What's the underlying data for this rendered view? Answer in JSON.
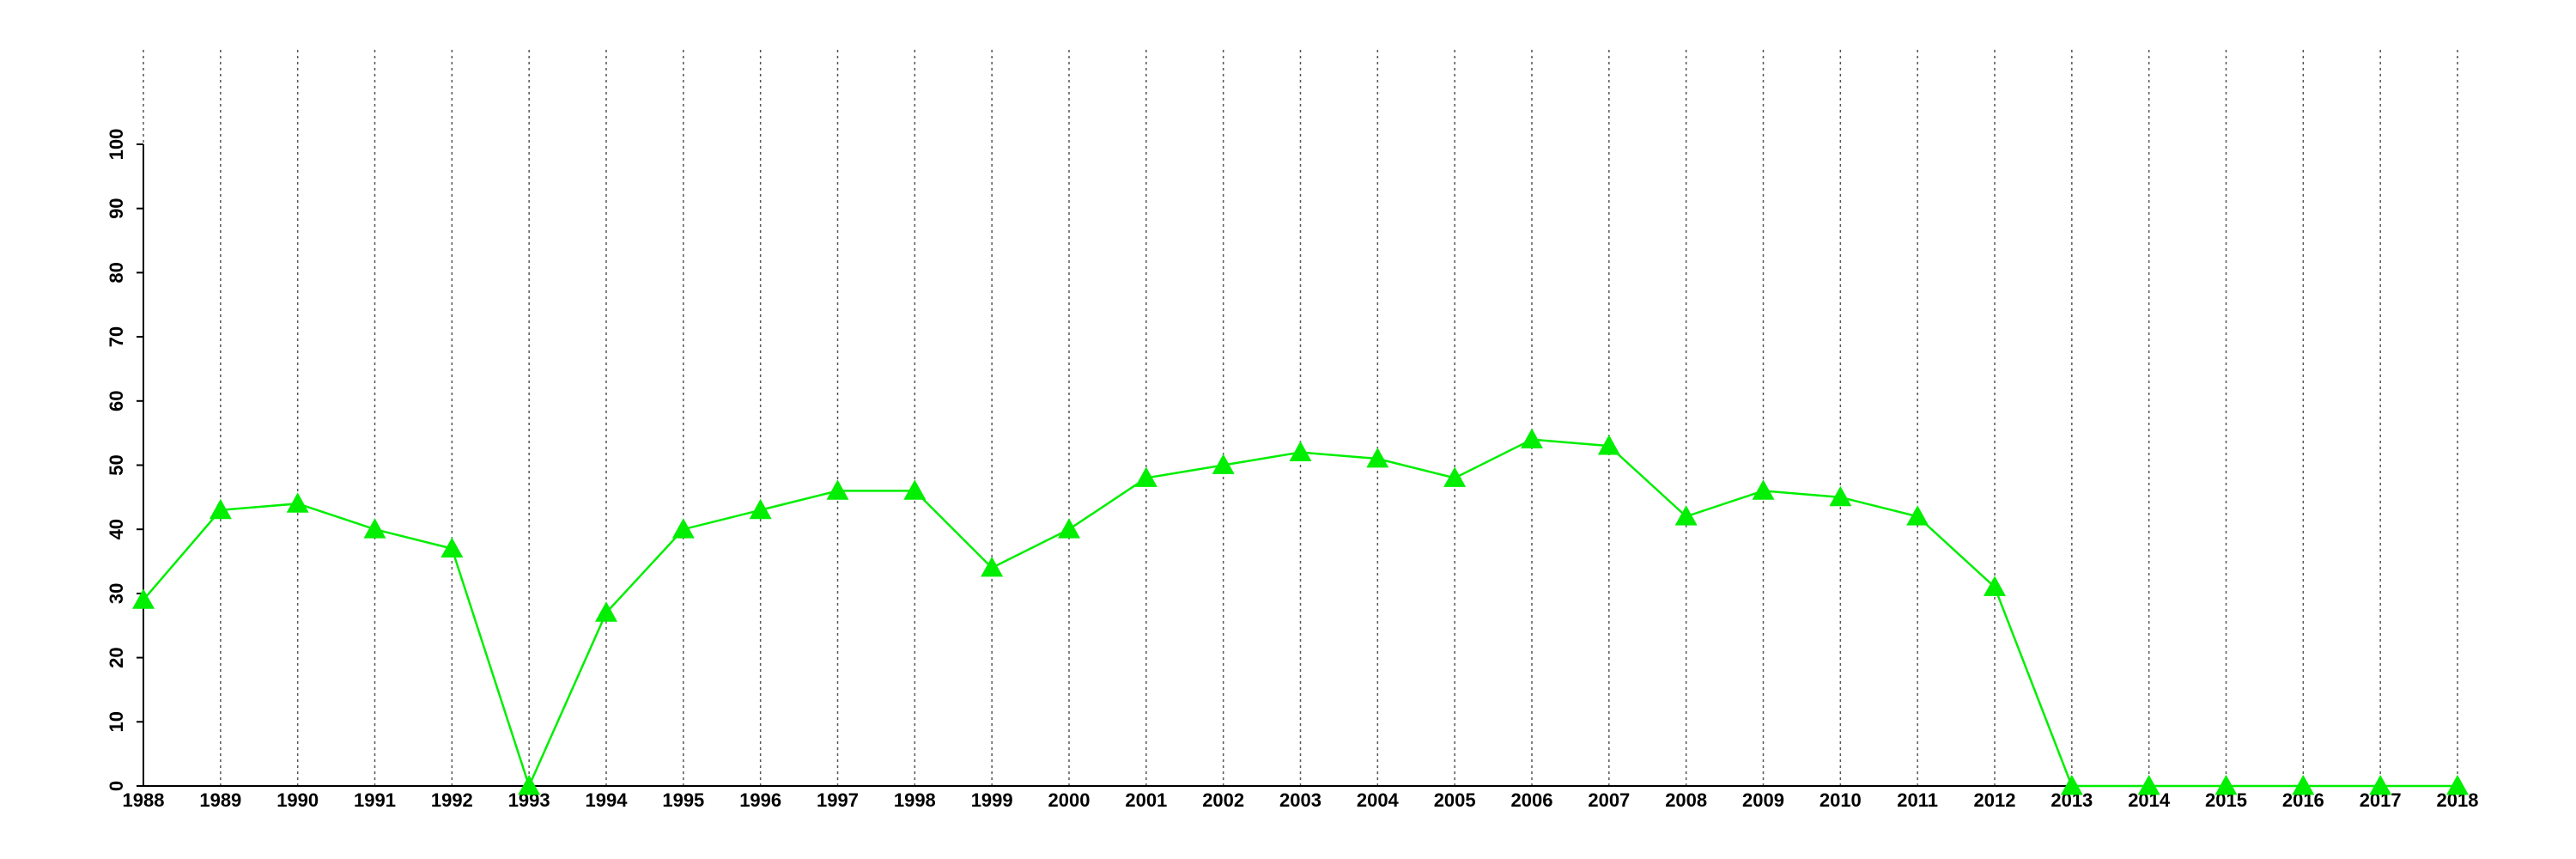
{
  "chart_data": {
    "type": "line",
    "x": [
      1988,
      1989,
      1990,
      1991,
      1992,
      1993,
      1994,
      1995,
      1996,
      1997,
      1998,
      1999,
      2000,
      2001,
      2002,
      2003,
      2004,
      2005,
      2006,
      2007,
      2008,
      2009,
      2010,
      2011,
      2012,
      2013,
      2014,
      2015,
      2016,
      2017,
      2018
    ],
    "values": [
      29,
      43,
      44,
      40,
      37,
      0,
      27,
      40,
      43,
      46,
      46,
      34,
      40,
      48,
      50,
      52,
      51,
      48,
      54,
      53,
      42,
      46,
      45,
      42,
      31,
      0,
      0,
      0,
      0,
      0,
      0
    ],
    "color": "#00ee00",
    "xlim": [
      1988,
      2018
    ],
    "xticks": [
      1988,
      1989,
      1990,
      1991,
      1992,
      1993,
      1994,
      1995,
      1996,
      1997,
      1998,
      1999,
      2000,
      2001,
      2002,
      2003,
      2004,
      2005,
      2006,
      2007,
      2008,
      2009,
      2010,
      2011,
      2012,
      2013,
      2014,
      2015,
      2016,
      2017,
      2018
    ],
    "ylim": [
      0,
      100
    ],
    "yticks": [
      0,
      10,
      20,
      30,
      40,
      50,
      60,
      70,
      80,
      90,
      100
    ],
    "grid": true
  }
}
